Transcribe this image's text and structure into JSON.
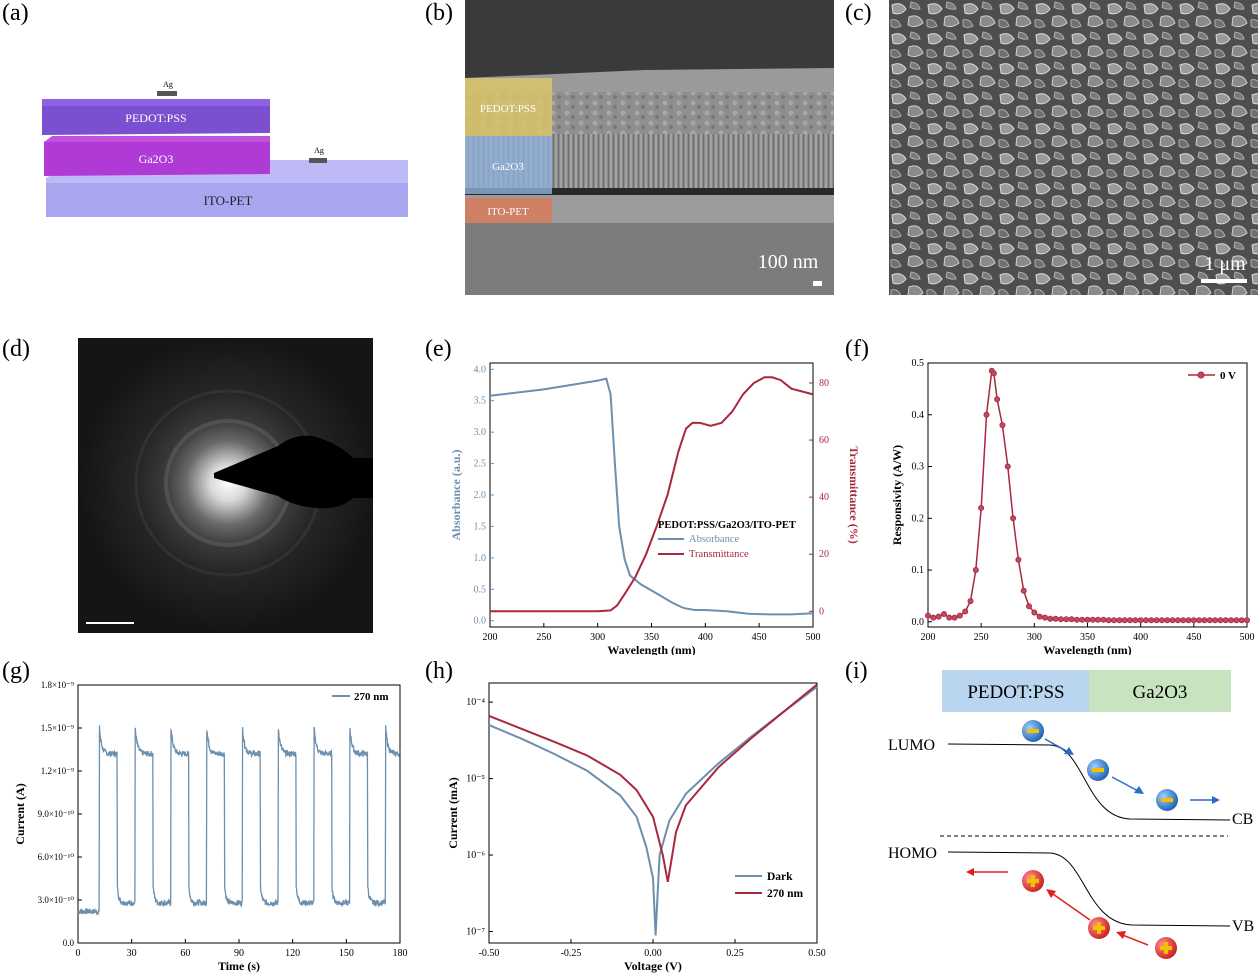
{
  "colors": {
    "blue": "#6b8fae",
    "red": "#a8283f",
    "purple_dark": "#7a4fd0",
    "purple_mag": "#b03ad6",
    "ito": "#a9a6f0",
    "sem_dark": "#3a3a3a"
  },
  "panels": {
    "a": {
      "label": "(a)",
      "layers": [
        "PEDOT:PSS",
        "Ga2O3",
        "ITO-PET"
      ],
      "contact": "Ag"
    },
    "b": {
      "label": "(b)",
      "layers": [
        "PEDOT:PSS",
        "Ga2O3",
        "ITO-PET"
      ],
      "scalebar": "100 nm"
    },
    "c": {
      "label": "(c)",
      "scalebar": "1 μm"
    },
    "d": {
      "label": "(d)"
    },
    "e": {
      "label": "(e)"
    },
    "f": {
      "label": "(f)"
    },
    "g": {
      "label": "(g)"
    },
    "h": {
      "label": "(h)"
    },
    "i": {
      "label": "(i)",
      "left_box": "PEDOT:PSS",
      "right_box": "Ga2O3",
      "lumo": "LUMO",
      "homo": "HOMO",
      "cb": "CB",
      "vb": "VB"
    }
  },
  "chart_data": [
    {
      "id": "e",
      "type": "line",
      "xlabel": "Wavelength (nm)",
      "ylabel": "Absorbance (a.u.)",
      "y2label": "Transmittance (%)",
      "xlim": [
        200,
        500
      ],
      "ylim": [
        -0.1,
        4.1
      ],
      "y2lim": [
        -5.5,
        87
      ],
      "xticks": [
        200,
        250,
        300,
        350,
        400,
        450,
        500
      ],
      "yticks": [
        0.0,
        0.5,
        1.0,
        1.5,
        2.0,
        2.5,
        3.0,
        3.5,
        4.0
      ],
      "y2ticks": [
        0,
        20,
        40,
        60,
        80
      ],
      "legend_title": "PEDOT:PSS/Ga2O3/ITO-PET",
      "series": [
        {
          "name": "Absorbance",
          "axis": "left",
          "color": "#6b8fae",
          "x": [
            200,
            250,
            300,
            308,
            312,
            316,
            320,
            325,
            330,
            340,
            350,
            360,
            370,
            380,
            390,
            400,
            420,
            440,
            460,
            480,
            500
          ],
          "y": [
            3.58,
            3.68,
            3.82,
            3.85,
            3.6,
            2.5,
            1.5,
            0.98,
            0.72,
            0.58,
            0.48,
            0.38,
            0.28,
            0.2,
            0.17,
            0.17,
            0.15,
            0.11,
            0.1,
            0.1,
            0.12
          ]
        },
        {
          "name": "Transmittance",
          "axis": "right",
          "color": "#a8283f",
          "x": [
            200,
            250,
            300,
            312,
            318,
            325,
            335,
            345,
            355,
            365,
            375,
            382,
            388,
            395,
            405,
            415,
            425,
            435,
            445,
            455,
            462,
            470,
            480,
            490,
            500
          ],
          "y": [
            0,
            0,
            0,
            0.3,
            2,
            6,
            12,
            20,
            30,
            41,
            56,
            64,
            66,
            66,
            65,
            66,
            70,
            76,
            80,
            82,
            82,
            81,
            78,
            77,
            76
          ]
        }
      ]
    },
    {
      "id": "f",
      "type": "line",
      "xlabel": "Wavelength (nm)",
      "ylabel": "Responsivity (A/W)",
      "xlim": [
        200,
        500
      ],
      "ylim": [
        -0.01,
        0.5
      ],
      "xticks": [
        200,
        250,
        300,
        350,
        400,
        450,
        500
      ],
      "yticks": [
        0.0,
        0.1,
        0.2,
        0.3,
        0.4,
        0.5
      ],
      "series": [
        {
          "name": "0 V",
          "color": "#a8283f",
          "markers": true,
          "x": [
            200,
            205,
            210,
            215,
            220,
            225,
            230,
            235,
            240,
            245,
            250,
            255,
            260,
            262,
            265,
            270,
            275,
            280,
            285,
            290,
            295,
            300,
            305,
            310,
            315,
            320,
            325,
            330,
            335,
            340,
            345,
            350,
            355,
            360,
            365,
            370,
            375,
            380,
            385,
            390,
            395,
            400,
            405,
            410,
            415,
            420,
            425,
            430,
            435,
            440,
            445,
            450,
            455,
            460,
            465,
            470,
            475,
            480,
            485,
            490,
            495,
            500
          ],
          "y": [
            0.012,
            0.008,
            0.01,
            0.015,
            0.008,
            0.008,
            0.012,
            0.02,
            0.04,
            0.1,
            0.22,
            0.4,
            0.485,
            0.48,
            0.43,
            0.38,
            0.3,
            0.2,
            0.12,
            0.06,
            0.03,
            0.018,
            0.01,
            0.008,
            0.006,
            0.006,
            0.005,
            0.005,
            0.005,
            0.004,
            0.004,
            0.004,
            0.004,
            0.004,
            0.004,
            0.003,
            0.003,
            0.003,
            0.003,
            0.003,
            0.003,
            0.003,
            0.003,
            0.003,
            0.003,
            0.003,
            0.003,
            0.003,
            0.003,
            0.003,
            0.003,
            0.003,
            0.003,
            0.003,
            0.003,
            0.003,
            0.003,
            0.003,
            0.003,
            0.003,
            0.003,
            0.003
          ]
        }
      ]
    },
    {
      "id": "g",
      "type": "line",
      "xlabel": "Time (s)",
      "ylabel": "Current (A)",
      "xlim": [
        0,
        180
      ],
      "ylim": [
        0,
        1.8e-09
      ],
      "xticks": [
        0,
        30,
        60,
        90,
        120,
        150,
        180
      ],
      "yticks": [
        0,
        3e-10,
        6e-10,
        9e-10,
        1.2e-09,
        1.5e-09,
        1.8e-09
      ],
      "ytick_labels": [
        "0.0",
        "3.0×10⁻¹⁰",
        "6.0×10⁻¹⁰",
        "9.0×10⁻¹⁰",
        "1.2×10⁻⁹",
        "1.5×10⁻⁹",
        "1.8×10⁻⁹"
      ],
      "on_times": [
        12,
        32,
        52,
        72,
        92,
        112,
        132,
        152,
        172
      ],
      "on_duration": 10,
      "peak": 1.5e-09,
      "plateau": 1.32e-09,
      "base": 2.8e-10,
      "initial_base": 2.2e-10,
      "series": [
        {
          "name": "270 nm",
          "color": "#6b8fae"
        }
      ]
    },
    {
      "id": "h",
      "type": "line",
      "yscale": "log",
      "xlabel": "Voltage (V)",
      "ylabel": "Current (mA)",
      "xlim": [
        -0.5,
        0.5
      ],
      "ylim_exp": [
        -7.15,
        -3.75
      ],
      "xticks": [
        -0.5,
        -0.25,
        0.0,
        0.25,
        0.5
      ],
      "xtick_labels": [
        "-0.50",
        "-0.25",
        "0.00",
        "0.25",
        "0.50"
      ],
      "yticks_exp": [
        -7,
        -6,
        -5,
        -4
      ],
      "ytick_labels": [
        "10⁻⁷",
        "10⁻⁶",
        "10⁻⁵",
        "10⁻⁴"
      ],
      "series": [
        {
          "name": "Dark",
          "color": "#6b8fae",
          "x": [
            -0.5,
            -0.4,
            -0.3,
            -0.2,
            -0.1,
            -0.05,
            -0.02,
            0.0,
            0.008,
            0.012,
            0.02,
            0.05,
            0.1,
            0.2,
            0.3,
            0.4,
            0.5
          ],
          "logy": [
            -4.3,
            -4.48,
            -4.68,
            -4.9,
            -5.22,
            -5.5,
            -5.9,
            -6.3,
            -7.05,
            -6.7,
            -6.0,
            -5.55,
            -5.2,
            -4.8,
            -4.45,
            -4.12,
            -3.8
          ]
        },
        {
          "name": "270 nm",
          "color": "#a8283f",
          "x": [
            -0.5,
            -0.4,
            -0.3,
            -0.2,
            -0.1,
            -0.05,
            0.0,
            0.03,
            0.045,
            0.055,
            0.07,
            0.1,
            0.2,
            0.3,
            0.4,
            0.5
          ],
          "logy": [
            -4.18,
            -4.35,
            -4.52,
            -4.7,
            -4.95,
            -5.15,
            -5.5,
            -6.0,
            -6.35,
            -6.1,
            -5.7,
            -5.35,
            -4.85,
            -4.47,
            -4.12,
            -3.77
          ]
        }
      ]
    }
  ]
}
